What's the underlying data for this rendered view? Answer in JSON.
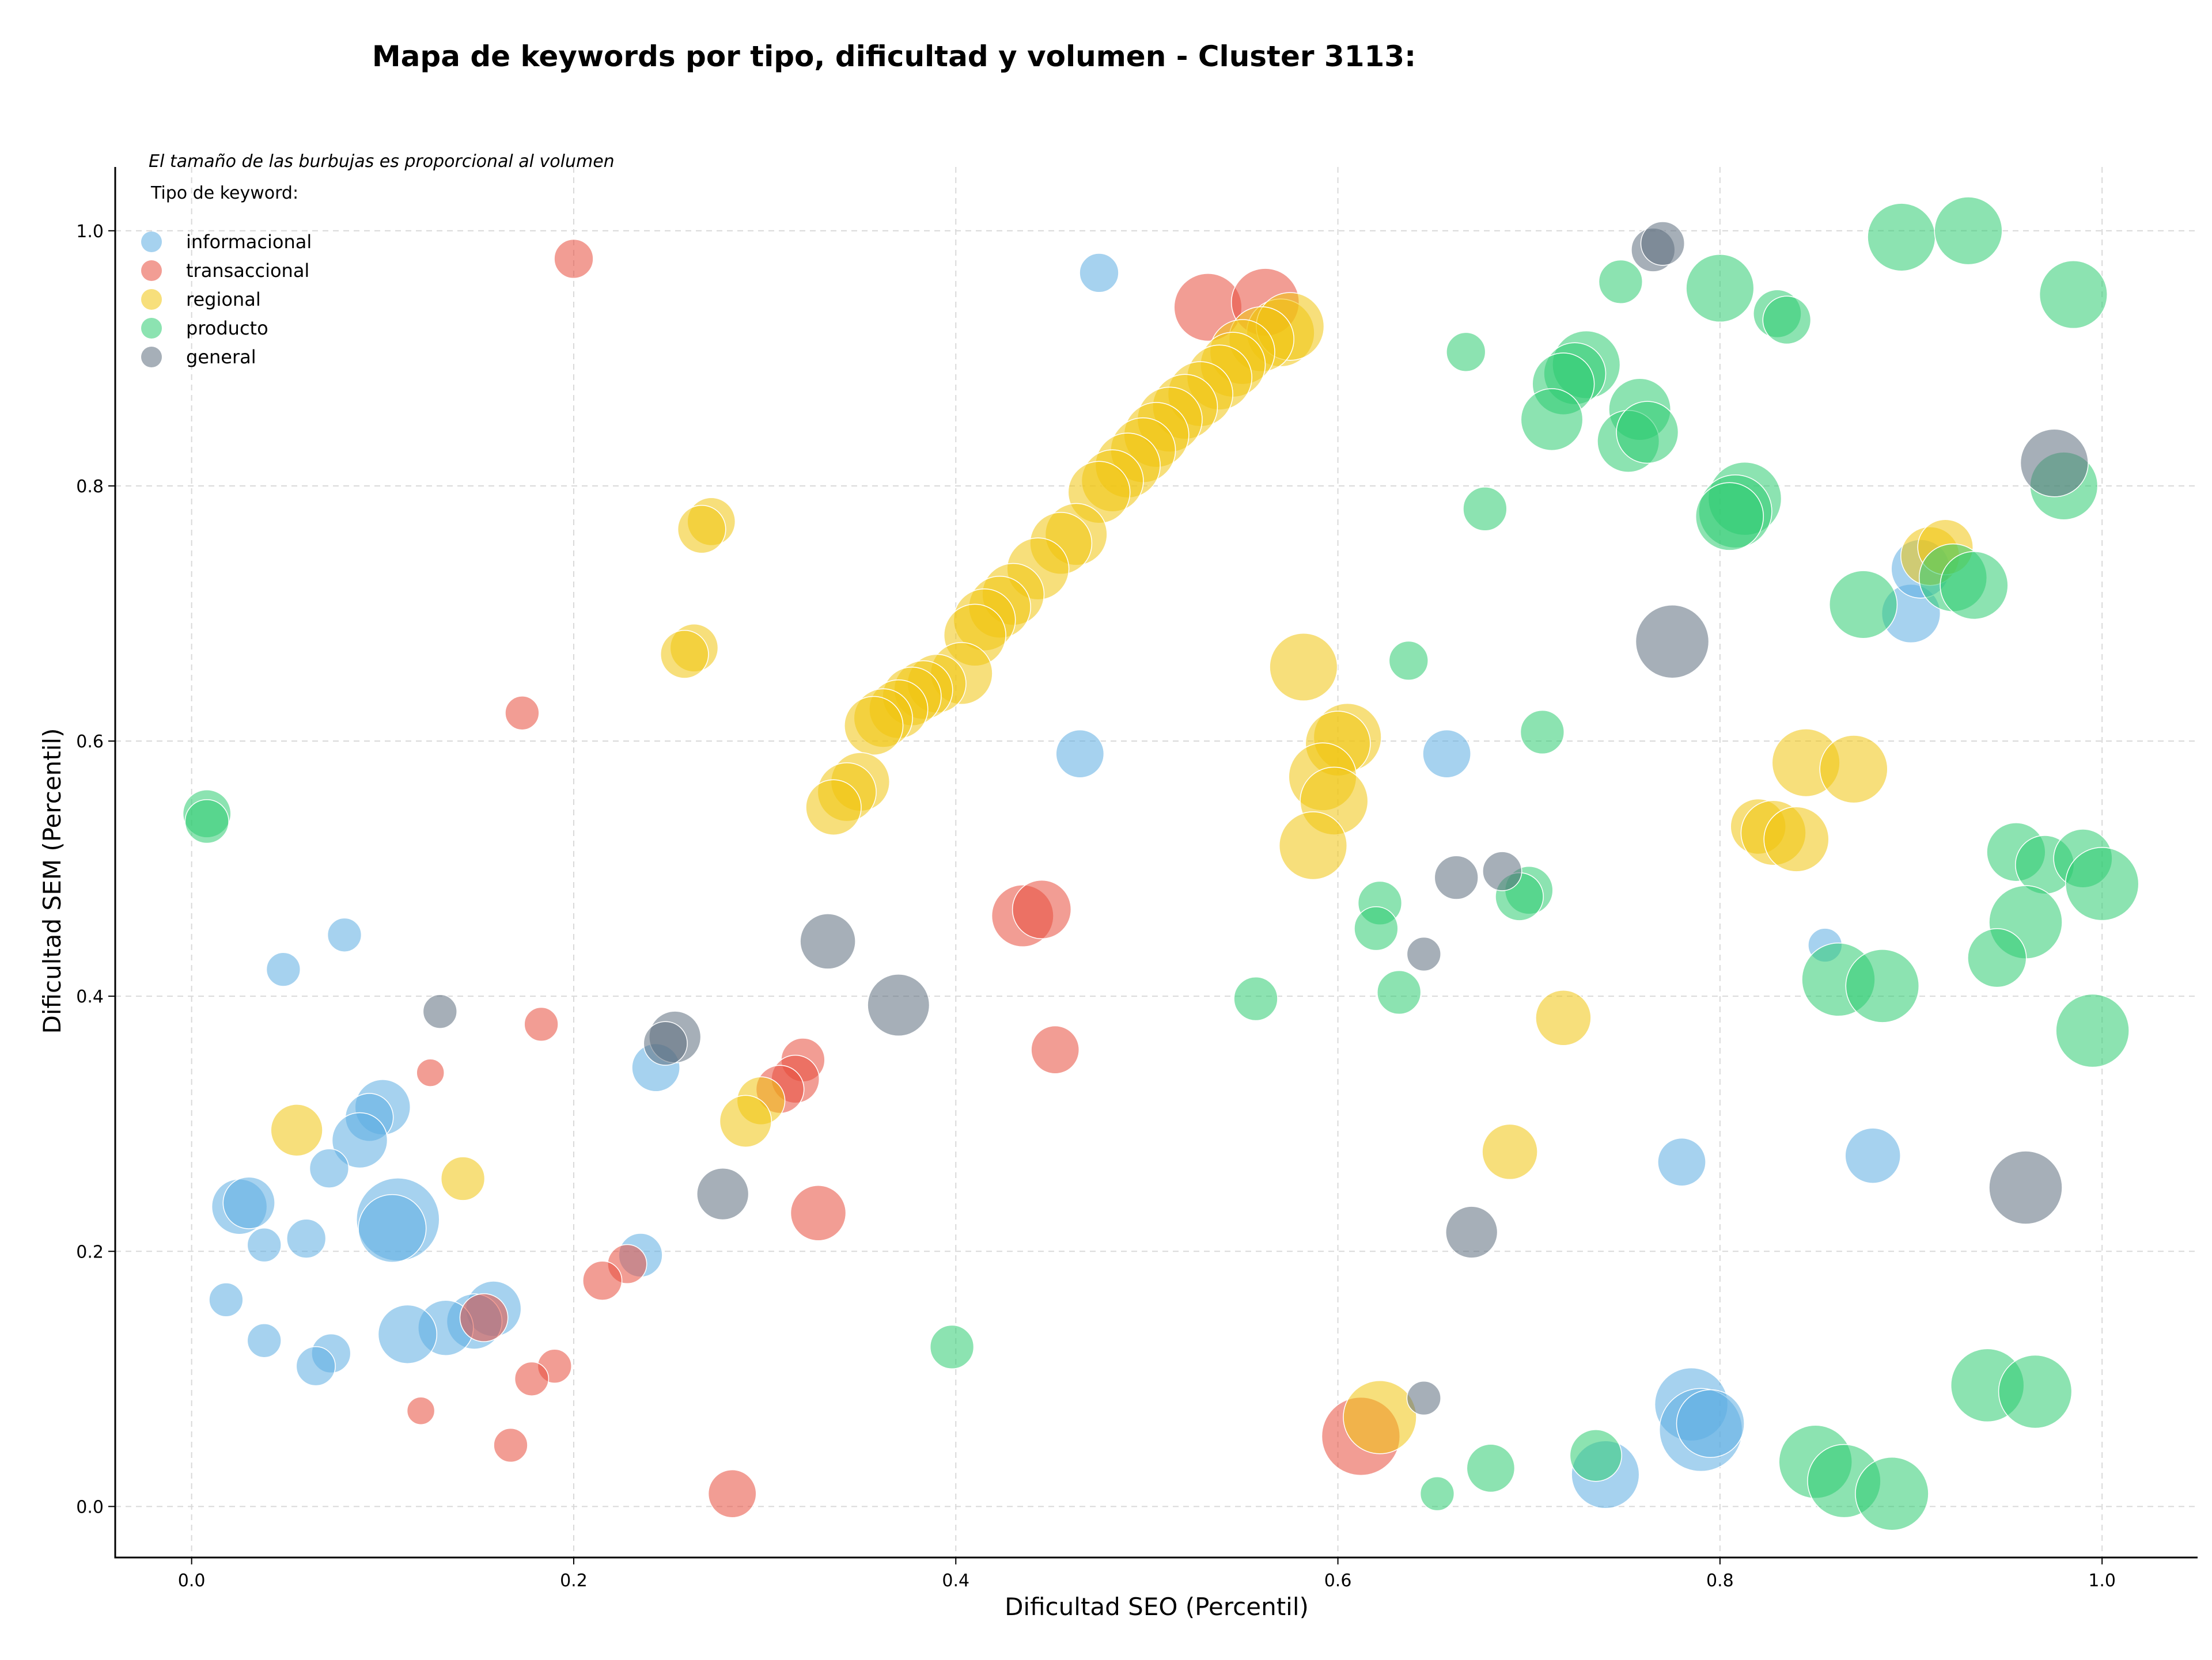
{
  "chart_data": {
    "type": "scatter",
    "title": "Mapa de keywords por tipo, dificultad y volumen - Cluster 3113:",
    "xlabel": "Dificultad SEO (Percentil)",
    "ylabel": "Dificultad SEM (Percentil)",
    "xlim": [
      -0.04,
      1.05
    ],
    "ylim": [
      -0.04,
      1.05
    ],
    "x_ticks": [
      "0.0",
      "0.2",
      "0.4",
      "0.6",
      "0.8",
      "1.0"
    ],
    "y_ticks": [
      "0.0",
      "0.2",
      "0.4",
      "0.6",
      "0.8",
      "1.0"
    ],
    "grid": true,
    "note": "El tamaño de las burbujas es proporcional al volumen",
    "legend": {
      "title": "Tipo de keyword:",
      "position": "top-left"
    },
    "series": [
      {
        "name": "informacional",
        "color": "#5DADE2",
        "points": [
          {
            "x": 0.475,
            "y": 0.967,
            "v": 2
          },
          {
            "x": 0.465,
            "y": 0.59,
            "v": 3
          },
          {
            "x": 0.657,
            "y": 0.59,
            "v": 3
          },
          {
            "x": 0.08,
            "y": 0.448,
            "v": 1.5
          },
          {
            "x": 0.048,
            "y": 0.421,
            "v": 1.5
          },
          {
            "x": 0.243,
            "y": 0.344,
            "v": 3
          },
          {
            "x": 0.1,
            "y": 0.313,
            "v": 4
          },
          {
            "x": 0.093,
            "y": 0.305,
            "v": 3
          },
          {
            "x": 0.088,
            "y": 0.287,
            "v": 4
          },
          {
            "x": 0.072,
            "y": 0.265,
            "v": 2
          },
          {
            "x": 0.025,
            "y": 0.235,
            "v": 4
          },
          {
            "x": 0.03,
            "y": 0.238,
            "v": 3.5
          },
          {
            "x": 0.108,
            "y": 0.225,
            "v": 9
          },
          {
            "x": 0.105,
            "y": 0.218,
            "v": 6
          },
          {
            "x": 0.06,
            "y": 0.21,
            "v": 2
          },
          {
            "x": 0.038,
            "y": 0.205,
            "v": 1.5
          },
          {
            "x": 0.235,
            "y": 0.197,
            "v": 2.5
          },
          {
            "x": 0.018,
            "y": 0.162,
            "v": 1.5
          },
          {
            "x": 0.158,
            "y": 0.155,
            "v": 4
          },
          {
            "x": 0.148,
            "y": 0.145,
            "v": 4
          },
          {
            "x": 0.133,
            "y": 0.14,
            "v": 4
          },
          {
            "x": 0.113,
            "y": 0.135,
            "v": 4.5
          },
          {
            "x": 0.038,
            "y": 0.13,
            "v": 1.5
          },
          {
            "x": 0.073,
            "y": 0.12,
            "v": 2
          },
          {
            "x": 0.065,
            "y": 0.11,
            "v": 2
          },
          {
            "x": 0.855,
            "y": 0.44,
            "v": 1.5
          },
          {
            "x": 0.78,
            "y": 0.27,
            "v": 3
          },
          {
            "x": 0.88,
            "y": 0.275,
            "v": 4
          },
          {
            "x": 0.9,
            "y": 0.7,
            "v": 4.5
          },
          {
            "x": 0.905,
            "y": 0.735,
            "v": 4.5
          },
          {
            "x": 0.785,
            "y": 0.08,
            "v": 7
          },
          {
            "x": 0.79,
            "y": 0.06,
            "v": 9
          },
          {
            "x": 0.795,
            "y": 0.065,
            "v": 6
          },
          {
            "x": 0.74,
            "y": 0.025,
            "v": 6
          }
        ]
      },
      {
        "name": "transaccional",
        "color": "#E74C3C",
        "points": [
          {
            "x": 0.2,
            "y": 0.978,
            "v": 2
          },
          {
            "x": 0.173,
            "y": 0.622,
            "v": 1.5
          },
          {
            "x": 0.183,
            "y": 0.378,
            "v": 1.5
          },
          {
            "x": 0.125,
            "y": 0.34,
            "v": 1
          },
          {
            "x": 0.435,
            "y": 0.463,
            "v": 5
          },
          {
            "x": 0.445,
            "y": 0.468,
            "v": 4.5
          },
          {
            "x": 0.452,
            "y": 0.358,
            "v": 3
          },
          {
            "x": 0.32,
            "y": 0.35,
            "v": 2.5
          },
          {
            "x": 0.316,
            "y": 0.335,
            "v": 3
          },
          {
            "x": 0.308,
            "y": 0.327,
            "v": 3
          },
          {
            "x": 0.328,
            "y": 0.23,
            "v": 4
          },
          {
            "x": 0.228,
            "y": 0.19,
            "v": 2
          },
          {
            "x": 0.215,
            "y": 0.177,
            "v": 2
          },
          {
            "x": 0.153,
            "y": 0.148,
            "v": 3
          },
          {
            "x": 0.19,
            "y": 0.11,
            "v": 1.5
          },
          {
            "x": 0.178,
            "y": 0.1,
            "v": 1.5
          },
          {
            "x": 0.12,
            "y": 0.075,
            "v": 1
          },
          {
            "x": 0.167,
            "y": 0.048,
            "v": 1.5
          },
          {
            "x": 0.283,
            "y": 0.01,
            "v": 3
          },
          {
            "x": 0.532,
            "y": 0.94,
            "v": 6
          },
          {
            "x": 0.562,
            "y": 0.944,
            "v": 6
          },
          {
            "x": 0.612,
            "y": 0.055,
            "v": 8
          }
        ]
      },
      {
        "name": "regional",
        "color": "#F1C40F",
        "points": [
          {
            "x": 0.57,
            "y": 0.92,
            "v": 6
          },
          {
            "x": 0.575,
            "y": 0.925,
            "v": 6
          },
          {
            "x": 0.56,
            "y": 0.915,
            "v": 5.5
          },
          {
            "x": 0.55,
            "y": 0.905,
            "v": 5.5
          },
          {
            "x": 0.545,
            "y": 0.895,
            "v": 5.5
          },
          {
            "x": 0.538,
            "y": 0.885,
            "v": 5.5
          },
          {
            "x": 0.528,
            "y": 0.872,
            "v": 5.5
          },
          {
            "x": 0.52,
            "y": 0.862,
            "v": 5.5
          },
          {
            "x": 0.512,
            "y": 0.852,
            "v": 5.5
          },
          {
            "x": 0.505,
            "y": 0.84,
            "v": 5.5
          },
          {
            "x": 0.498,
            "y": 0.828,
            "v": 5.5
          },
          {
            "x": 0.49,
            "y": 0.816,
            "v": 5.5
          },
          {
            "x": 0.482,
            "y": 0.804,
            "v": 5
          },
          {
            "x": 0.475,
            "y": 0.795,
            "v": 5
          },
          {
            "x": 0.463,
            "y": 0.762,
            "v": 5
          },
          {
            "x": 0.455,
            "y": 0.755,
            "v": 5
          },
          {
            "x": 0.443,
            "y": 0.735,
            "v": 5
          },
          {
            "x": 0.43,
            "y": 0.715,
            "v": 5
          },
          {
            "x": 0.423,
            "y": 0.705,
            "v": 5
          },
          {
            "x": 0.415,
            "y": 0.695,
            "v": 5
          },
          {
            "x": 0.41,
            "y": 0.683,
            "v": 5
          },
          {
            "x": 0.403,
            "y": 0.653,
            "v": 5
          },
          {
            "x": 0.39,
            "y": 0.645,
            "v": 4.5
          },
          {
            "x": 0.383,
            "y": 0.64,
            "v": 4.5
          },
          {
            "x": 0.377,
            "y": 0.635,
            "v": 4.5
          },
          {
            "x": 0.37,
            "y": 0.625,
            "v": 4.5
          },
          {
            "x": 0.362,
            "y": 0.618,
            "v": 4.5
          },
          {
            "x": 0.357,
            "y": 0.612,
            "v": 4.5
          },
          {
            "x": 0.35,
            "y": 0.568,
            "v": 4.5
          },
          {
            "x": 0.343,
            "y": 0.56,
            "v": 4.5
          },
          {
            "x": 0.336,
            "y": 0.548,
            "v": 4
          },
          {
            "x": 0.272,
            "y": 0.772,
            "v": 3
          },
          {
            "x": 0.267,
            "y": 0.766,
            "v": 3
          },
          {
            "x": 0.263,
            "y": 0.673,
            "v": 3
          },
          {
            "x": 0.258,
            "y": 0.668,
            "v": 3
          },
          {
            "x": 0.582,
            "y": 0.658,
            "v": 6
          },
          {
            "x": 0.605,
            "y": 0.603,
            "v": 6
          },
          {
            "x": 0.6,
            "y": 0.598,
            "v": 5.5
          },
          {
            "x": 0.592,
            "y": 0.572,
            "v": 6
          },
          {
            "x": 0.598,
            "y": 0.553,
            "v": 6
          },
          {
            "x": 0.587,
            "y": 0.518,
            "v": 6
          },
          {
            "x": 0.055,
            "y": 0.295,
            "v": 3.5
          },
          {
            "x": 0.142,
            "y": 0.257,
            "v": 2.5
          },
          {
            "x": 0.298,
            "y": 0.318,
            "v": 3
          },
          {
            "x": 0.29,
            "y": 0.302,
            "v": 3.5
          },
          {
            "x": 0.718,
            "y": 0.383,
            "v": 4
          },
          {
            "x": 0.69,
            "y": 0.278,
            "v": 4
          },
          {
            "x": 0.845,
            "y": 0.583,
            "v": 6
          },
          {
            "x": 0.87,
            "y": 0.578,
            "v": 6
          },
          {
            "x": 0.82,
            "y": 0.533,
            "v": 4
          },
          {
            "x": 0.828,
            "y": 0.528,
            "v": 5.5
          },
          {
            "x": 0.84,
            "y": 0.523,
            "v": 5.5
          },
          {
            "x": 0.91,
            "y": 0.745,
            "v": 4.5
          },
          {
            "x": 0.918,
            "y": 0.752,
            "v": 4
          },
          {
            "x": 0.622,
            "y": 0.07,
            "v": 7
          }
        ]
      },
      {
        "name": "producto",
        "color": "#2ECC71",
        "points": [
          {
            "x": 0.895,
            "y": 0.995,
            "v": 6
          },
          {
            "x": 0.93,
            "y": 1.0,
            "v": 6
          },
          {
            "x": 0.985,
            "y": 0.95,
            "v": 6
          },
          {
            "x": 0.8,
            "y": 0.955,
            "v": 6
          },
          {
            "x": 0.748,
            "y": 0.96,
            "v": 2.5
          },
          {
            "x": 0.83,
            "y": 0.935,
            "v": 3
          },
          {
            "x": 0.835,
            "y": 0.93,
            "v": 3
          },
          {
            "x": 0.667,
            "y": 0.905,
            "v": 2
          },
          {
            "x": 0.73,
            "y": 0.895,
            "v": 6
          },
          {
            "x": 0.724,
            "y": 0.888,
            "v": 5
          },
          {
            "x": 0.718,
            "y": 0.88,
            "v": 5
          },
          {
            "x": 0.758,
            "y": 0.86,
            "v": 5
          },
          {
            "x": 0.712,
            "y": 0.852,
            "v": 5
          },
          {
            "x": 0.752,
            "y": 0.835,
            "v": 5
          },
          {
            "x": 0.762,
            "y": 0.842,
            "v": 5
          },
          {
            "x": 0.813,
            "y": 0.79,
            "v": 7
          },
          {
            "x": 0.808,
            "y": 0.78,
            "v": 7
          },
          {
            "x": 0.805,
            "y": 0.776,
            "v": 6
          },
          {
            "x": 0.677,
            "y": 0.782,
            "v": 2.5
          },
          {
            "x": 0.98,
            "y": 0.8,
            "v": 6
          },
          {
            "x": 0.875,
            "y": 0.707,
            "v": 6
          },
          {
            "x": 0.922,
            "y": 0.728,
            "v": 6
          },
          {
            "x": 0.933,
            "y": 0.722,
            "v": 6
          },
          {
            "x": 0.637,
            "y": 0.663,
            "v": 2
          },
          {
            "x": 0.707,
            "y": 0.607,
            "v": 2.5
          },
          {
            "x": 0.955,
            "y": 0.513,
            "v": 4.5
          },
          {
            "x": 0.97,
            "y": 0.503,
            "v": 4.5
          },
          {
            "x": 0.99,
            "y": 0.508,
            "v": 4.5
          },
          {
            "x": 1.0,
            "y": 0.488,
            "v": 7
          },
          {
            "x": 0.96,
            "y": 0.458,
            "v": 7
          },
          {
            "x": 0.945,
            "y": 0.43,
            "v": 4.5
          },
          {
            "x": 0.862,
            "y": 0.413,
            "v": 7
          },
          {
            "x": 0.885,
            "y": 0.408,
            "v": 7
          },
          {
            "x": 0.995,
            "y": 0.373,
            "v": 7
          },
          {
            "x": 0.7,
            "y": 0.483,
            "v": 3
          },
          {
            "x": 0.695,
            "y": 0.478,
            "v": 3
          },
          {
            "x": 0.622,
            "y": 0.473,
            "v": 2.5
          },
          {
            "x": 0.62,
            "y": 0.453,
            "v": 2.5
          },
          {
            "x": 0.632,
            "y": 0.403,
            "v": 2.5
          },
          {
            "x": 0.557,
            "y": 0.398,
            "v": 2.5
          },
          {
            "x": 0.008,
            "y": 0.543,
            "v": 3
          },
          {
            "x": 0.008,
            "y": 0.537,
            "v": 2.5
          },
          {
            "x": 0.398,
            "y": 0.125,
            "v": 2.5
          },
          {
            "x": 0.94,
            "y": 0.095,
            "v": 7
          },
          {
            "x": 0.965,
            "y": 0.09,
            "v": 7
          },
          {
            "x": 0.735,
            "y": 0.04,
            "v": 3.5
          },
          {
            "x": 0.68,
            "y": 0.03,
            "v": 3
          },
          {
            "x": 0.652,
            "y": 0.01,
            "v": 1.5
          },
          {
            "x": 0.85,
            "y": 0.035,
            "v": 7
          },
          {
            "x": 0.865,
            "y": 0.02,
            "v": 7
          },
          {
            "x": 0.89,
            "y": 0.01,
            "v": 7
          }
        ]
      },
      {
        "name": "general",
        "color": "#5D6D7E",
        "points": [
          {
            "x": 0.765,
            "y": 0.985,
            "v": 2.5
          },
          {
            "x": 0.77,
            "y": 0.99,
            "v": 2.5
          },
          {
            "x": 0.975,
            "y": 0.818,
            "v": 6
          },
          {
            "x": 0.775,
            "y": 0.678,
            "v": 7
          },
          {
            "x": 0.96,
            "y": 0.25,
            "v": 7
          },
          {
            "x": 0.333,
            "y": 0.443,
            "v": 4
          },
          {
            "x": 0.37,
            "y": 0.393,
            "v": 5
          },
          {
            "x": 0.253,
            "y": 0.368,
            "v": 3.5
          },
          {
            "x": 0.248,
            "y": 0.363,
            "v": 2.5
          },
          {
            "x": 0.13,
            "y": 0.388,
            "v": 1.5
          },
          {
            "x": 0.278,
            "y": 0.245,
            "v": 3.5
          },
          {
            "x": 0.662,
            "y": 0.493,
            "v": 2.5
          },
          {
            "x": 0.686,
            "y": 0.498,
            "v": 2
          },
          {
            "x": 0.645,
            "y": 0.433,
            "v": 1.5
          },
          {
            "x": 0.67,
            "y": 0.215,
            "v": 3.5
          },
          {
            "x": 0.645,
            "y": 0.085,
            "v": 1.5
          }
        ]
      }
    ]
  }
}
